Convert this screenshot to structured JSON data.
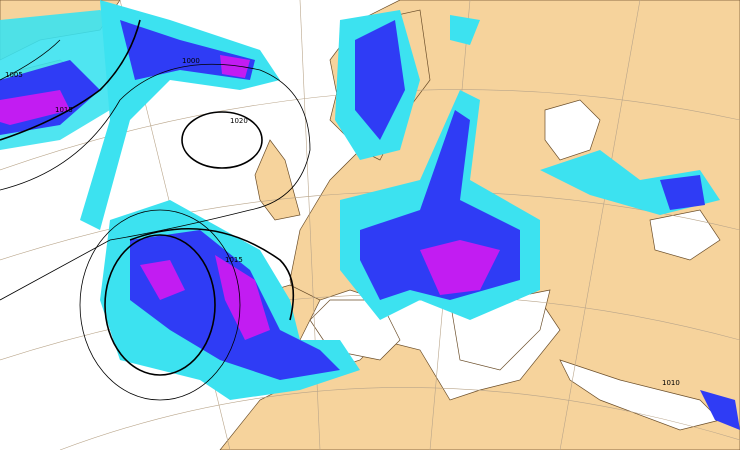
{
  "map": {
    "colors": {
      "sea": "#ffffff",
      "land": "#f6d39c",
      "precip_light": "#3ce2f0",
      "precip_medium": "#2f3cf5",
      "precip_heavy": "#c21cf2",
      "isobar": "#000000",
      "graticule": "#b9a58a"
    },
    "isobar_labels": [
      {
        "text": "1000"
      },
      {
        "text": "1020"
      },
      {
        "text": "1015"
      },
      {
        "text": "1005"
      },
      {
        "text": "1015"
      },
      {
        "text": "1010"
      }
    ]
  }
}
